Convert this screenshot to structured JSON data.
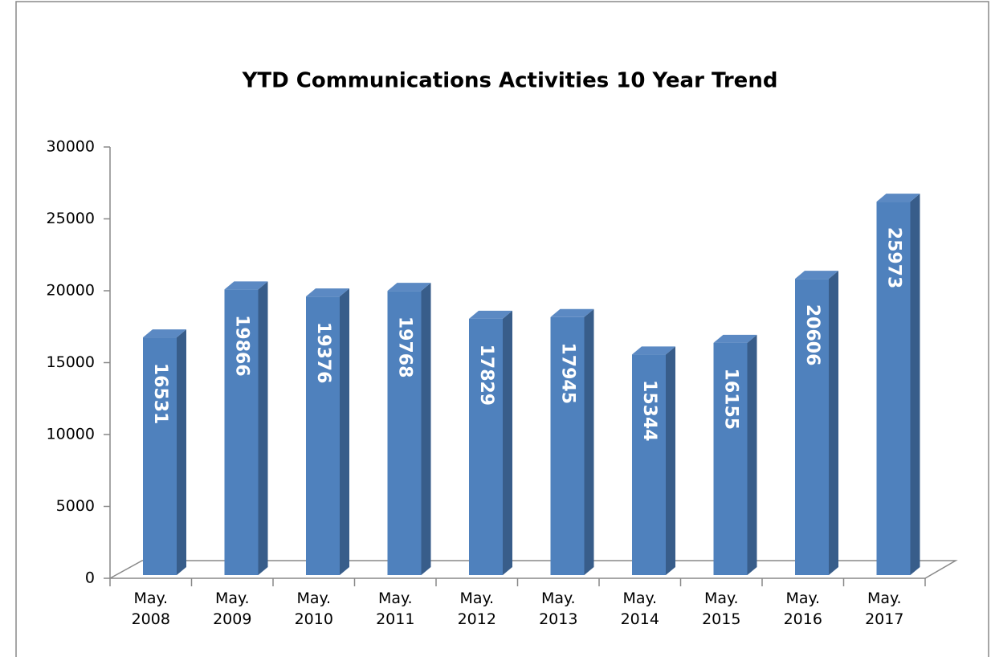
{
  "chart_data": {
    "type": "bar3d",
    "title": "YTD Communications Activities 10 Year Trend",
    "categories": [
      "May. 2008",
      "May. 2009",
      "May. 2010",
      "May. 2011",
      "May. 2012",
      "May. 2013",
      "May. 2014",
      "May. 2015",
      "May. 2016",
      "May. 2017"
    ],
    "values": [
      16531,
      19866,
      19376,
      19768,
      17829,
      17945,
      15344,
      16155,
      20606,
      25973
    ],
    "color": "#4f81bd",
    "ylim": [
      0,
      30000
    ],
    "yticks": [
      0,
      5000,
      10000,
      15000,
      20000,
      25000,
      30000
    ],
    "grid": false
  }
}
